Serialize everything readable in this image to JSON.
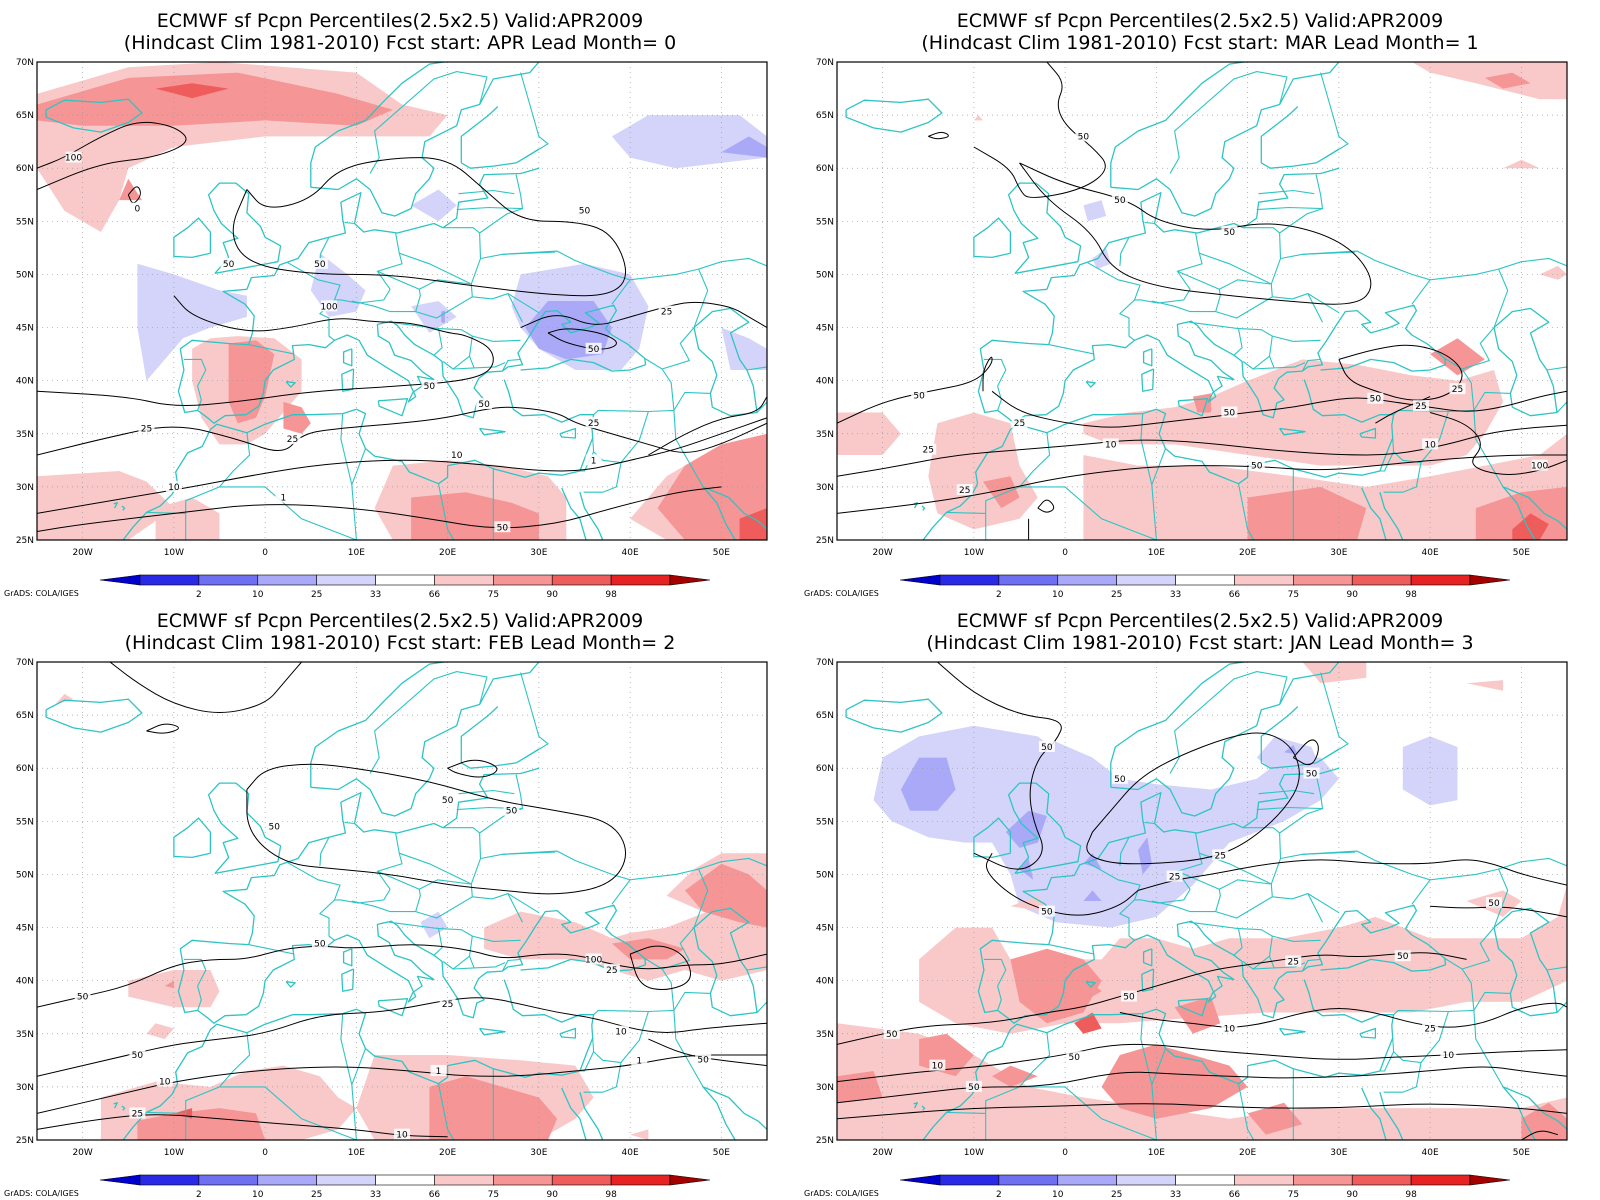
{
  "colors": {
    "coast": "#2ec4c4",
    "contour": "#000000",
    "grid": "#9a9a9a",
    "bins": [
      "#0000cc",
      "#2a2ae6",
      "#6f6ff2",
      "#a9a9f7",
      "#d4d4fb",
      "#ffffff",
      "#f9c9c9",
      "#f59595",
      "#ee5c5c",
      "#e62222",
      "#a50000"
    ]
  },
  "colorbar": {
    "labels": [
      "2",
      "10",
      "25",
      "33",
      "66",
      "75",
      "90",
      "98"
    ]
  },
  "credit": "GrADS: COLA/IGES",
  "axes": {
    "lat_labels": [
      "70N",
      "65N",
      "60N",
      "55N",
      "50N",
      "45N",
      "40N",
      "35N",
      "30N",
      "25N"
    ],
    "lon_labels": [
      "20W",
      "10W",
      "0",
      "10E",
      "20E",
      "30E",
      "40E",
      "50E"
    ]
  },
  "panels": [
    {
      "title1": "ECMWF sf Pcpn Percentiles(2.5x2.5) Valid:APR2009",
      "title2": "(Hindcast Clim 1981-2010) Fcst start: APR  Lead Month= 0",
      "contour_labels": [
        "100",
        "0",
        "50",
        "50",
        "50",
        "100",
        "50",
        "25",
        "50",
        "25",
        "25",
        "50",
        "25",
        "10",
        "10",
        "1",
        "1",
        "50"
      ]
    },
    {
      "title1": "ECMWF sf Pcpn Percentiles(2.5x2.5) Valid:APR2009",
      "title2": "(Hindcast Clim 1981-2010) Fcst start: MAR  Lead Month= 1",
      "contour_labels": [
        "50",
        "50",
        "50",
        "50",
        "25",
        "50",
        "50",
        "25",
        "10",
        "10",
        "25",
        "50",
        "25",
        "100",
        "25",
        "10",
        "50",
        "50"
      ]
    },
    {
      "title1": "ECMWF sf Pcpn Percentiles(2.5x2.5) Valid:APR2009",
      "title2": "(Hindcast Clim 1981-2010) Fcst start: FEB  Lead Month= 2",
      "contour_labels": [
        "50",
        "50",
        "50",
        "50",
        "50",
        "100",
        "25",
        "50",
        "25",
        "10",
        "10",
        "1",
        "1",
        "25",
        "10",
        "50"
      ]
    },
    {
      "title1": "ECMWF sf Pcpn Percentiles(2.5x2.5) Valid:APR2009",
      "title2": "(Hindcast Clim 1981-2010) Fcst start: JAN  Lead Month= 3",
      "contour_labels": [
        "50",
        "50",
        "25",
        "50",
        "50",
        "25",
        "50",
        "50",
        "50",
        "25",
        "50",
        "10",
        "25",
        "10",
        "50",
        "10",
        "50"
      ]
    }
  ]
}
